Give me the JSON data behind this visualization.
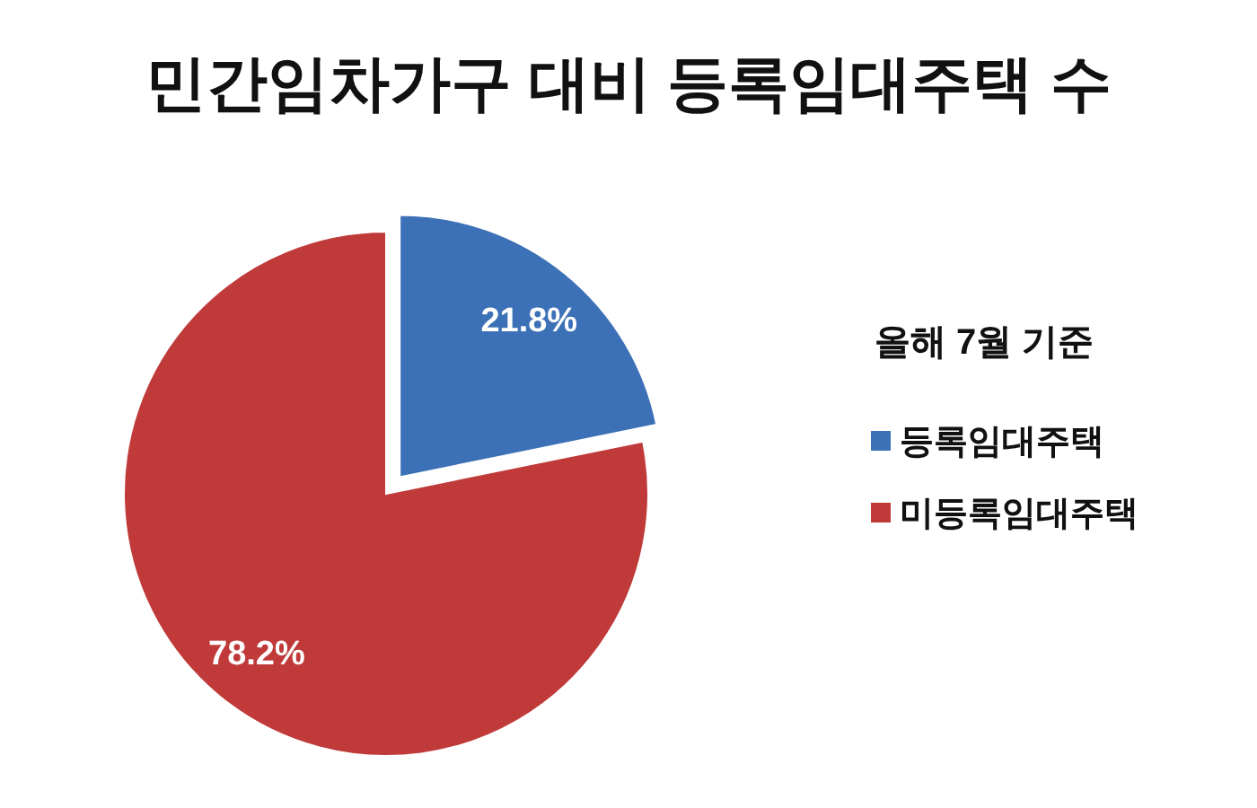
{
  "chart_data": {
    "type": "pie",
    "title": "민간임차가구 대비 등록임대주택 수",
    "legend_title": "올해 7월 기준",
    "categories": [
      "등록임대주택",
      "미등록임대주택"
    ],
    "values": [
      21.8,
      78.2
    ],
    "colors": [
      "#3d71b7",
      "#c03a3a"
    ],
    "value_labels": [
      "21.8%",
      "78.2%"
    ],
    "legend": "right"
  }
}
